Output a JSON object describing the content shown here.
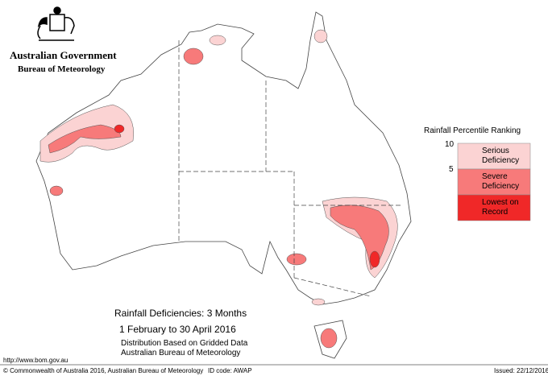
{
  "header": {
    "government": "Australian Government",
    "agency": "Bureau of Meteorology"
  },
  "legend": {
    "title": "Rainfall Percentile Ranking",
    "ticks": [
      10,
      5
    ],
    "classes": [
      {
        "label": "Serious Deficiency",
        "color": "#fbd3d3"
      },
      {
        "label": "Severe Deficiency",
        "color": "#f77a7a"
      },
      {
        "label": "Lowest on Record",
        "color": "#f02828"
      }
    ]
  },
  "map_title": {
    "title": "Rainfall Deficiencies: 3 Months",
    "period": "1 February to 30 April 2016",
    "notes": [
      "Distribution Based on Gridded Data",
      "Australian Bureau of Meteorology"
    ]
  },
  "footer": {
    "url": "http://www.bom.gov.au",
    "copyright": "© Commonwealth of Australia 2016, Australian Bureau of Meteorology",
    "id_code": "ID code: AWAP",
    "issued": "Issued: 22/12/2016"
  }
}
